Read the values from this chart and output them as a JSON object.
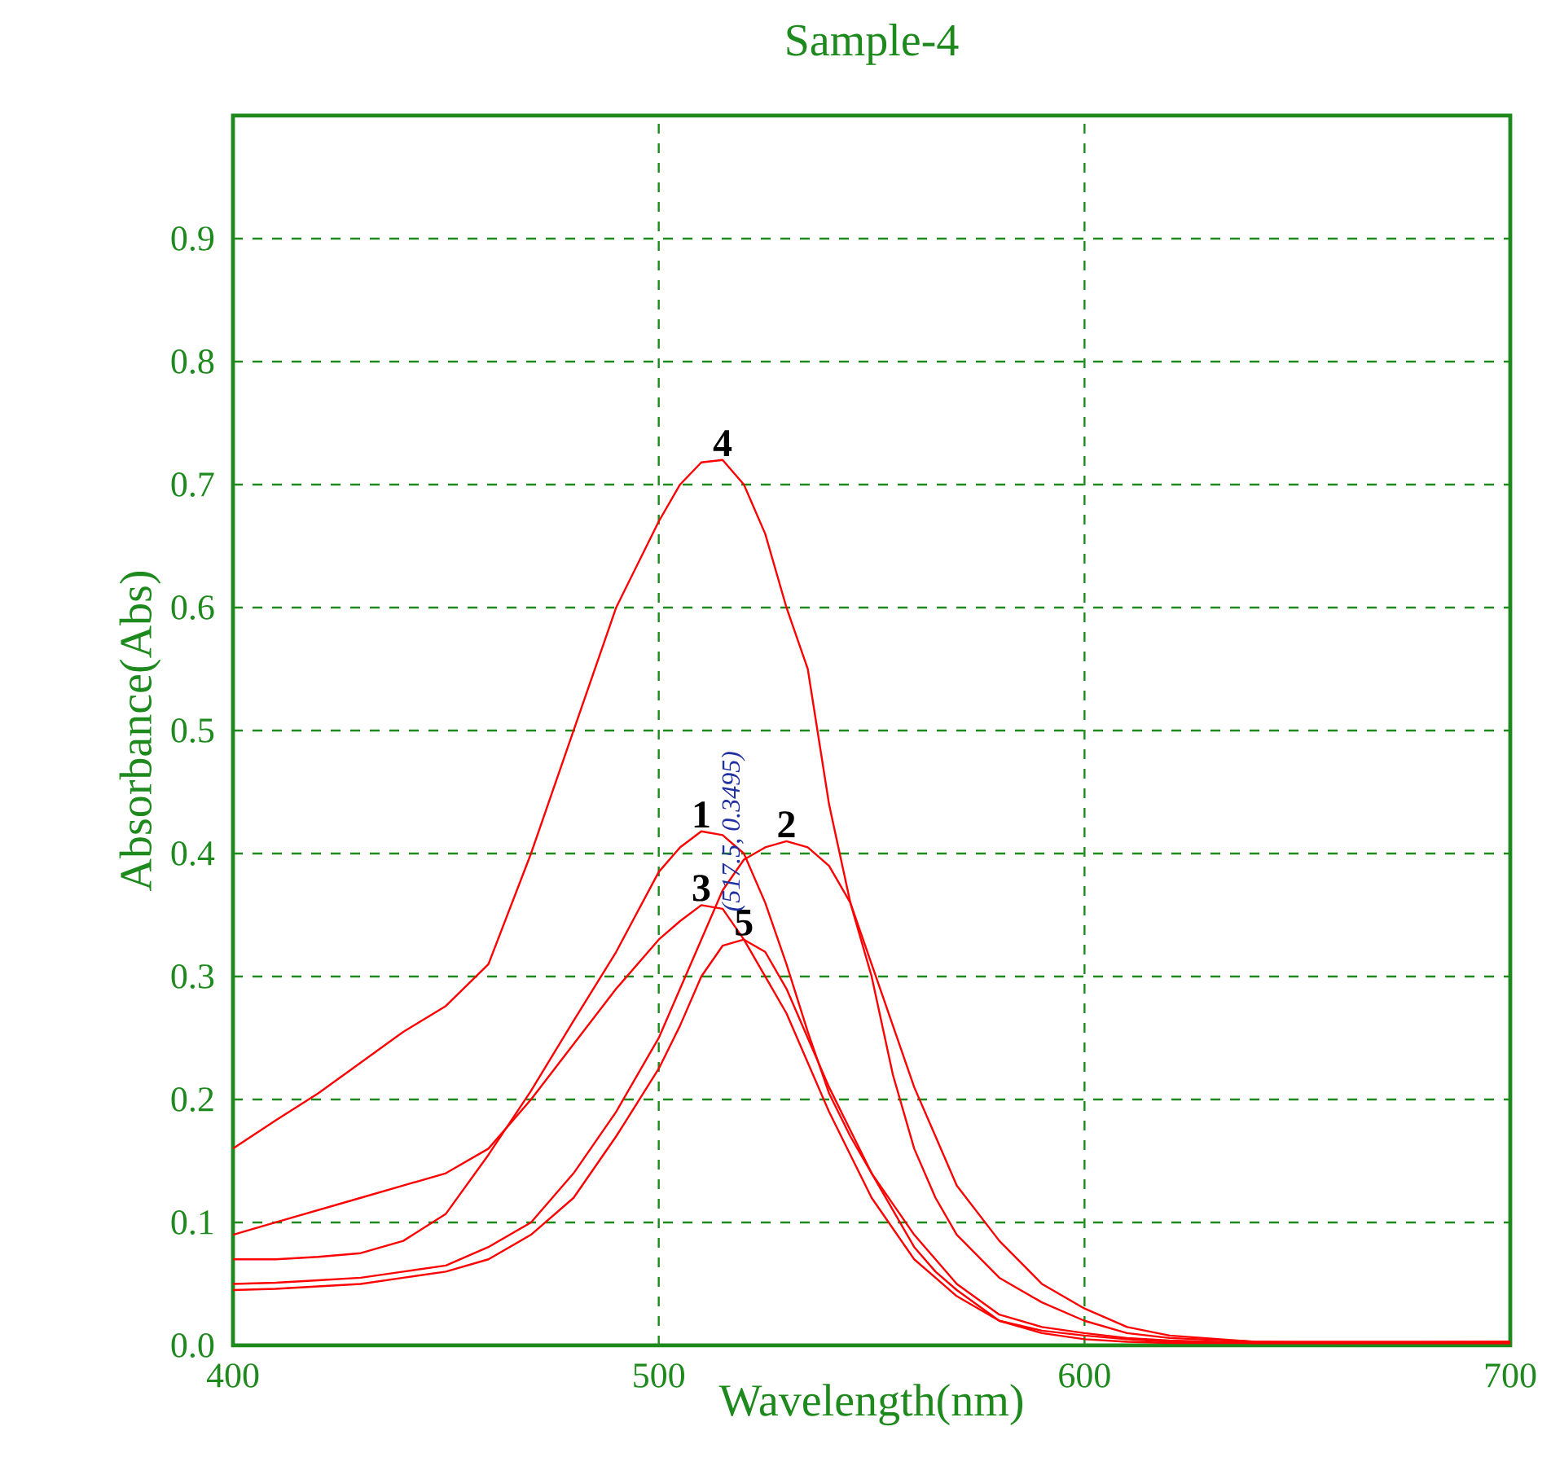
{
  "chart_data": {
    "type": "line",
    "title": "Sample-4",
    "xlabel": "Wavelength(nm)",
    "ylabel": "Absorbance(Abs)",
    "xlim": [
      400,
      700
    ],
    "ylim": [
      0,
      1
    ],
    "xticks": [
      400,
      500,
      600,
      700
    ],
    "yticks": [
      {
        "value": 0,
        "label": "0.0"
      },
      0.1,
      0.2,
      0.3,
      0.4,
      0.5,
      0.6,
      0.7,
      0.8,
      0.9
    ],
    "grid": true,
    "x": [
      400,
      410,
      420,
      430,
      440,
      450,
      460,
      470,
      480,
      490,
      500,
      505,
      510,
      515,
      520,
      525,
      530,
      535,
      540,
      545,
      550,
      555,
      560,
      565,
      570,
      580,
      590,
      600,
      610,
      620,
      640,
      660,
      700
    ],
    "series": [
      {
        "name": "1",
        "color": "#ff0000",
        "values": [
          0.07,
          0.07,
          0.072,
          0.075,
          0.085,
          0.107,
          0.155,
          0.207,
          0.264,
          0.32,
          0.385,
          0.405,
          0.418,
          0.415,
          0.4,
          0.36,
          0.31,
          0.255,
          0.205,
          0.17,
          0.14,
          0.115,
          0.09,
          0.07,
          0.05,
          0.025,
          0.015,
          0.01,
          0.006,
          0.004,
          0.002,
          0.002,
          0.002
        ]
      },
      {
        "name": "2",
        "color": "#ff0000",
        "values": [
          0.05,
          0.051,
          0.053,
          0.055,
          0.06,
          0.065,
          0.08,
          0.1,
          0.14,
          0.19,
          0.25,
          0.29,
          0.33,
          0.37,
          0.395,
          0.405,
          0.41,
          0.405,
          0.39,
          0.36,
          0.31,
          0.26,
          0.21,
          0.17,
          0.13,
          0.085,
          0.05,
          0.03,
          0.015,
          0.008,
          0.003,
          0.003,
          0.003
        ]
      },
      {
        "name": "3",
        "color": "#ff0000",
        "values": [
          0.09,
          0.1,
          0.11,
          0.12,
          0.13,
          0.14,
          0.16,
          0.2,
          0.245,
          0.29,
          0.33,
          0.345,
          0.358,
          0.355,
          0.33,
          0.3,
          0.27,
          0.23,
          0.19,
          0.155,
          0.12,
          0.095,
          0.07,
          0.055,
          0.04,
          0.02,
          0.012,
          0.008,
          0.005,
          0.003,
          0.002,
          0.002,
          0.002
        ]
      },
      {
        "name": "4",
        "color": "#ff0000",
        "values": [
          0.16,
          0.183,
          0.205,
          0.23,
          0.255,
          0.276,
          0.31,
          0.4,
          0.5,
          0.6,
          0.67,
          0.7,
          0.718,
          0.72,
          0.7,
          0.66,
          0.6,
          0.55,
          0.44,
          0.36,
          0.3,
          0.22,
          0.16,
          0.12,
          0.09,
          0.055,
          0.035,
          0.02,
          0.01,
          0.006,
          0.003,
          0.002,
          0.003
        ]
      },
      {
        "name": "5",
        "color": "#ff0000",
        "values": [
          0.045,
          0.046,
          0.048,
          0.05,
          0.055,
          0.06,
          0.07,
          0.09,
          0.12,
          0.17,
          0.225,
          0.26,
          0.3,
          0.325,
          0.33,
          0.32,
          0.29,
          0.25,
          0.21,
          0.175,
          0.14,
          0.11,
          0.08,
          0.06,
          0.045,
          0.02,
          0.01,
          0.005,
          0.003,
          0.002,
          0.002,
          0.002,
          0.002
        ]
      }
    ],
    "annotations": [
      {
        "text": "(517.5, 0.3495)",
        "x": 517.5,
        "y": 0.3495
      }
    ]
  }
}
